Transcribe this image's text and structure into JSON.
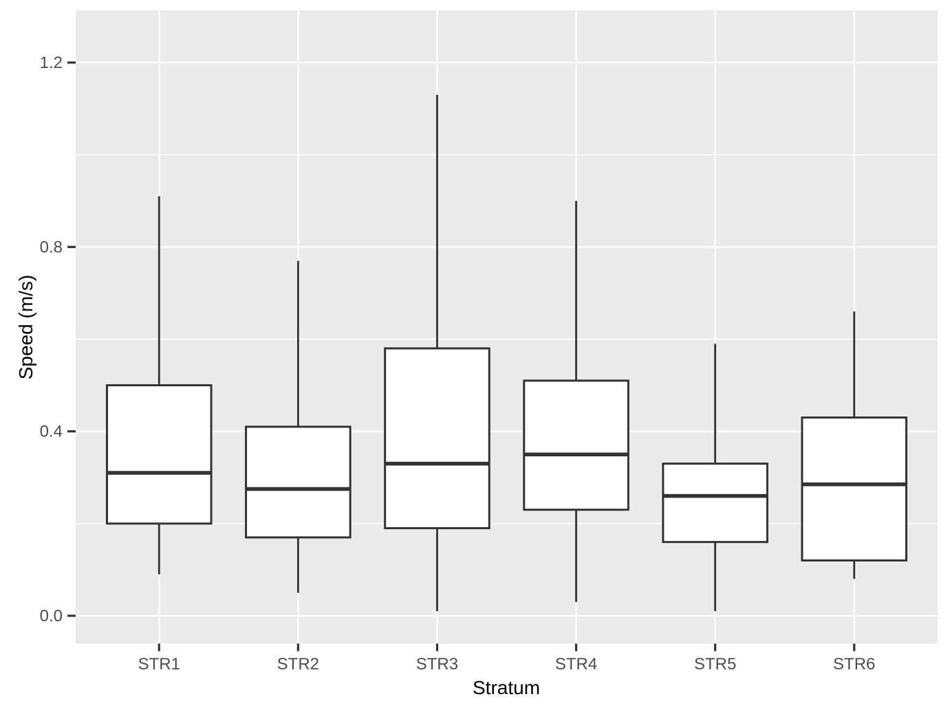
{
  "chart_data": {
    "type": "boxplot",
    "title": "",
    "xlabel": "Stratum",
    "ylabel": "Speed (m/s)",
    "categories": [
      "STR1",
      "STR2",
      "STR3",
      "STR4",
      "STR5",
      "STR6"
    ],
    "series": [
      {
        "name": "STR1",
        "whisker_low": 0.09,
        "q1": 0.2,
        "median": 0.31,
        "q3": 0.5,
        "whisker_high": 0.91
      },
      {
        "name": "STR2",
        "whisker_low": 0.05,
        "q1": 0.17,
        "median": 0.275,
        "q3": 0.41,
        "whisker_high": 0.77
      },
      {
        "name": "STR3",
        "whisker_low": 0.01,
        "q1": 0.19,
        "median": 0.33,
        "q3": 0.58,
        "whisker_high": 1.13
      },
      {
        "name": "STR4",
        "whisker_low": 0.03,
        "q1": 0.23,
        "median": 0.35,
        "q3": 0.51,
        "whisker_high": 0.9
      },
      {
        "name": "STR5",
        "whisker_low": 0.01,
        "q1": 0.16,
        "median": 0.26,
        "q3": 0.33,
        "whisker_high": 0.59
      },
      {
        "name": "STR6",
        "whisker_low": 0.08,
        "q1": 0.12,
        "median": 0.285,
        "q3": 0.43,
        "whisker_high": 0.66
      }
    ],
    "yticks": {
      "values": [
        0.0,
        0.4,
        0.8,
        1.2
      ],
      "labels": [
        "0.0",
        "0.4",
        "0.8",
        "1.2"
      ]
    },
    "yminor": [
      0.2,
      0.6,
      1.0
    ],
    "ylim": [
      -0.0604,
      1.3133
    ],
    "legend": "none",
    "grid": {
      "horizontal_major": true,
      "horizontal_minor": true,
      "vertical_major_at_categories": true
    },
    "colors": {
      "panel_bg": "#EBEBEB",
      "gridline": "#FFFFFF",
      "box_stroke": "#333333",
      "box_fill": "#FFFFFF",
      "median_stroke": "#333333",
      "tick_label": "#4D4D4D",
      "tick_mark": "#333333",
      "axis_title": "#000000"
    }
  }
}
